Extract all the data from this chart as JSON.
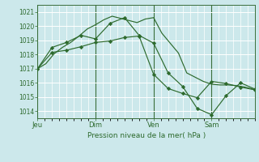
{
  "background_color": "#cce8eb",
  "grid_color": "#b0d8dc",
  "line_color": "#2d6a2d",
  "marker_color": "#2d6a2d",
  "xlabel": "Pression niveau de la mer( hPa )",
  "ylim": [
    1013.5,
    1021.5
  ],
  "yticks": [
    1014,
    1015,
    1016,
    1017,
    1018,
    1019,
    1020,
    1021
  ],
  "day_labels": [
    "Jeu",
    "Dim",
    "Ven",
    "Sam"
  ],
  "day_positions": [
    0,
    56,
    112,
    168
  ],
  "xlim": [
    0,
    210
  ],
  "series1_x": [
    0,
    8,
    16,
    24,
    32,
    40,
    48,
    56,
    64,
    72,
    80,
    88,
    96,
    104,
    112,
    120,
    128,
    136,
    144,
    152,
    160,
    168,
    176,
    184,
    192,
    200,
    208
  ],
  "series1_y": [
    1017.0,
    1017.35,
    1018.05,
    1018.5,
    1018.85,
    1019.3,
    1019.8,
    1020.1,
    1020.45,
    1020.7,
    1020.55,
    1020.4,
    1020.25,
    1020.5,
    1020.6,
    1019.5,
    1018.8,
    1018.1,
    1016.7,
    1016.4,
    1016.1,
    1015.9,
    1015.85,
    1015.85,
    1015.8,
    1015.7,
    1015.55
  ],
  "series2_x": [
    0,
    14,
    28,
    42,
    56,
    70,
    84,
    98,
    112,
    126,
    140,
    154,
    168,
    182,
    196,
    210
  ],
  "series2_y": [
    1017.0,
    1018.5,
    1018.85,
    1019.35,
    1019.1,
    1020.2,
    1020.6,
    1019.35,
    1018.8,
    1016.7,
    1015.75,
    1014.2,
    1013.75,
    1015.1,
    1016.0,
    1015.55
  ],
  "series3_x": [
    0,
    14,
    28,
    42,
    56,
    70,
    84,
    98,
    112,
    126,
    140,
    154,
    168,
    182,
    196,
    210
  ],
  "series3_y": [
    1017.0,
    1018.15,
    1018.3,
    1018.55,
    1018.85,
    1018.95,
    1019.2,
    1019.3,
    1016.6,
    1015.6,
    1015.25,
    1014.95,
    1016.1,
    1015.95,
    1015.7,
    1015.5
  ]
}
